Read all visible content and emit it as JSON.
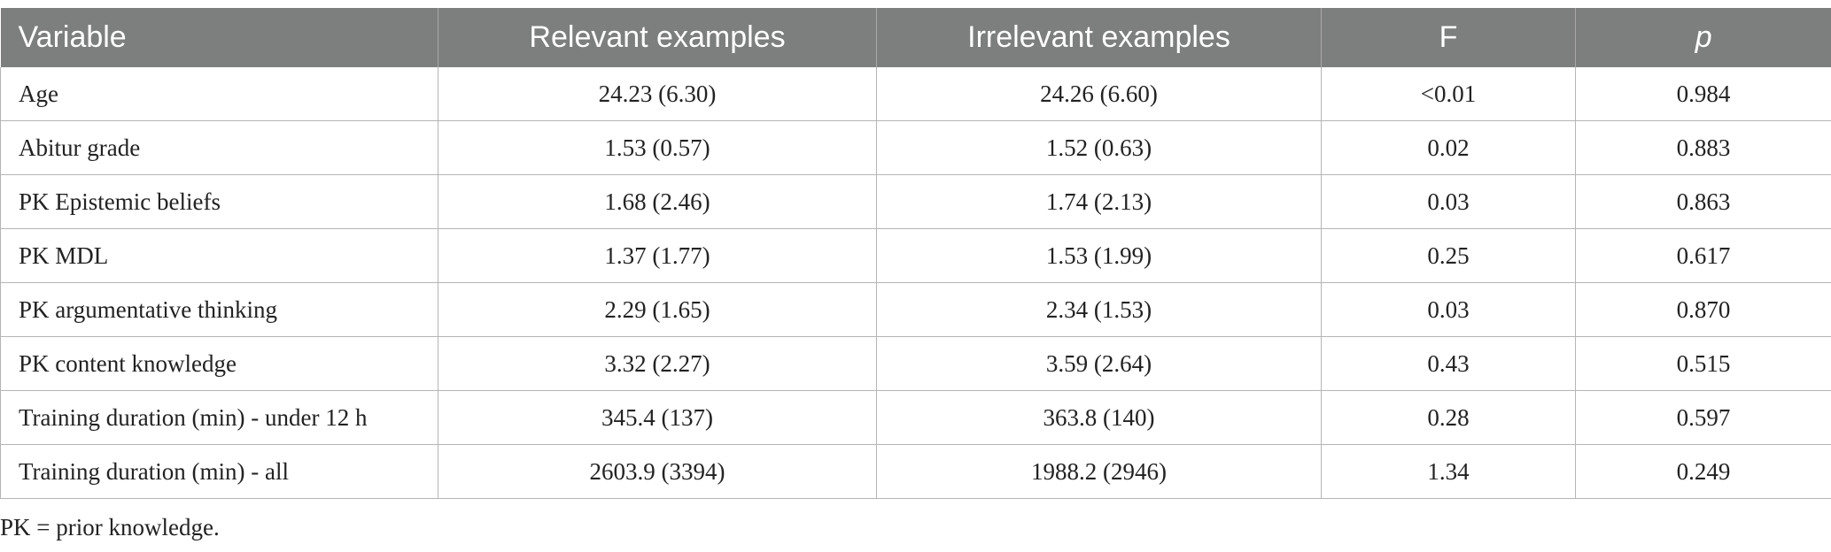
{
  "table": {
    "columns": [
      "Variable",
      "Relevant examples",
      "Irrelevant examples",
      "F",
      "p"
    ],
    "rows": [
      [
        "Age",
        "24.23 (6.30)",
        "24.26 (6.60)",
        "<0.01",
        "0.984"
      ],
      [
        "Abitur grade",
        "1.53 (0.57)",
        "1.52 (0.63)",
        "0.02",
        "0.883"
      ],
      [
        "PK Epistemic beliefs",
        "1.68 (2.46)",
        "1.74 (2.13)",
        "0.03",
        "0.863"
      ],
      [
        "PK MDL",
        "1.37 (1.77)",
        "1.53 (1.99)",
        "0.25",
        "0.617"
      ],
      [
        "PK argumentative thinking",
        "2.29 (1.65)",
        "2.34 (1.53)",
        "0.03",
        "0.870"
      ],
      [
        "PK content knowledge",
        "3.32 (2.27)",
        "3.59 (2.64)",
        "0.43",
        "0.515"
      ],
      [
        "Training duration (min) - under 12 h",
        "345.4 (137)",
        "363.8 (140)",
        "0.28",
        "0.597"
      ],
      [
        "Training duration (min) - all",
        "2603.9 (3394)",
        "1988.2 (2946)",
        "1.34",
        "0.249"
      ]
    ]
  },
  "footnote": "PK = prior knowledge."
}
